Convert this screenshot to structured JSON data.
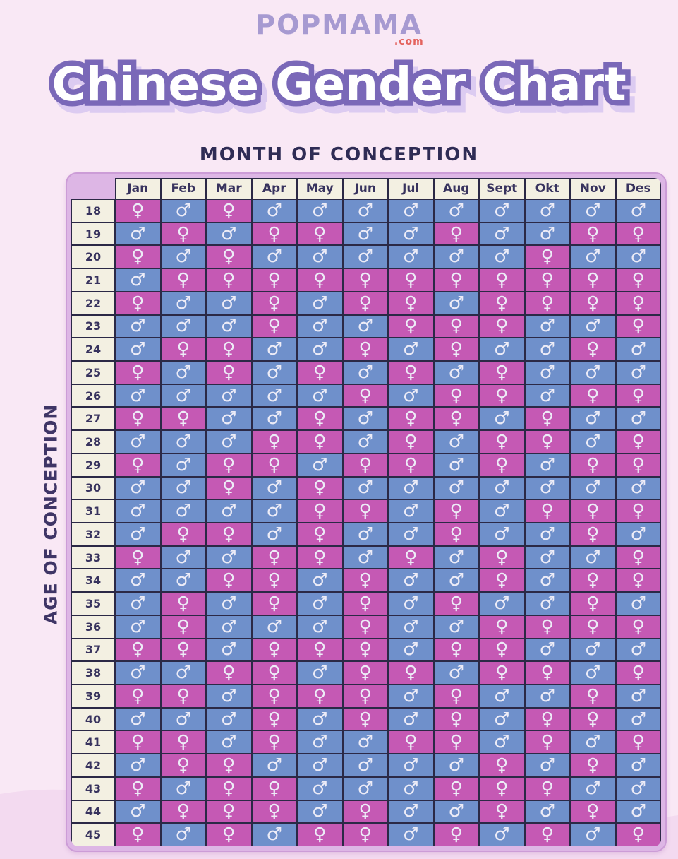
{
  "brand": {
    "name": "POPMAMA",
    "tld": ".com"
  },
  "title": "Chinese Gender Chart",
  "axis": {
    "top": "MONTH OF CONCEPTION",
    "left": "AGE OF CONCEPTION"
  },
  "symbols": {
    "F": "♀",
    "M": "♂"
  },
  "colors": {
    "page_bg": "#f9e8f5",
    "wave": "#f3daf0",
    "frame": "#ddb6e5",
    "frame_border": "#cc9cd7",
    "header_bg": "#f3f0e2",
    "cell_border": "#2b2946",
    "female_bg": "#c559b4",
    "male_bg": "#6f90cb",
    "symbol": "#edecf7",
    "text_dark": "#38335e",
    "title_fill": "#ffffff",
    "title_outline": "#7a68b8",
    "title_shadow": "#dccbf1",
    "brand_purple": "#a79ad1",
    "brand_red": "#e4635e"
  },
  "chart_data": {
    "type": "table",
    "title": "Chinese Gender Chart",
    "x_axis_label": "MONTH OF CONCEPTION",
    "y_axis_label": "AGE OF CONCEPTION",
    "value_legend": {
      "F": "girl (pink, ♀)",
      "M": "boy (blue, ♂)"
    },
    "columns": [
      "Jan",
      "Feb",
      "Mar",
      "Apr",
      "May",
      "Jun",
      "Jul",
      "Aug",
      "Sept",
      "Okt",
      "Nov",
      "Des"
    ],
    "rows": [
      {
        "age": 18,
        "genders": [
          "F",
          "M",
          "F",
          "M",
          "M",
          "M",
          "M",
          "M",
          "M",
          "M",
          "M",
          "M"
        ]
      },
      {
        "age": 19,
        "genders": [
          "M",
          "F",
          "M",
          "F",
          "F",
          "M",
          "M",
          "F",
          "M",
          "M",
          "F",
          "F"
        ]
      },
      {
        "age": 20,
        "genders": [
          "F",
          "M",
          "F",
          "M",
          "M",
          "M",
          "M",
          "M",
          "M",
          "F",
          "M",
          "M"
        ]
      },
      {
        "age": 21,
        "genders": [
          "M",
          "F",
          "F",
          "F",
          "F",
          "F",
          "F",
          "F",
          "F",
          "F",
          "F",
          "F"
        ]
      },
      {
        "age": 22,
        "genders": [
          "F",
          "M",
          "M",
          "F",
          "M",
          "F",
          "F",
          "M",
          "F",
          "F",
          "F",
          "F"
        ]
      },
      {
        "age": 23,
        "genders": [
          "M",
          "M",
          "M",
          "F",
          "M",
          "M",
          "F",
          "F",
          "F",
          "M",
          "M",
          "F"
        ]
      },
      {
        "age": 24,
        "genders": [
          "M",
          "F",
          "F",
          "M",
          "M",
          "F",
          "M",
          "F",
          "M",
          "M",
          "F",
          "M"
        ]
      },
      {
        "age": 25,
        "genders": [
          "F",
          "M",
          "F",
          "M",
          "F",
          "M",
          "F",
          "M",
          "F",
          "M",
          "M",
          "M"
        ]
      },
      {
        "age": 26,
        "genders": [
          "M",
          "M",
          "M",
          "M",
          "M",
          "F",
          "M",
          "F",
          "F",
          "M",
          "F",
          "F"
        ]
      },
      {
        "age": 27,
        "genders": [
          "F",
          "F",
          "M",
          "M",
          "F",
          "M",
          "F",
          "F",
          "M",
          "F",
          "M",
          "M"
        ]
      },
      {
        "age": 28,
        "genders": [
          "M",
          "M",
          "M",
          "F",
          "F",
          "M",
          "F",
          "M",
          "F",
          "F",
          "M",
          "F"
        ]
      },
      {
        "age": 29,
        "genders": [
          "F",
          "M",
          "F",
          "F",
          "M",
          "F",
          "F",
          "M",
          "F",
          "M",
          "F",
          "F"
        ]
      },
      {
        "age": 30,
        "genders": [
          "M",
          "M",
          "F",
          "M",
          "F",
          "M",
          "M",
          "M",
          "M",
          "M",
          "M",
          "M"
        ]
      },
      {
        "age": 31,
        "genders": [
          "M",
          "M",
          "M",
          "M",
          "F",
          "F",
          "M",
          "F",
          "M",
          "F",
          "F",
          "F"
        ]
      },
      {
        "age": 32,
        "genders": [
          "M",
          "F",
          "F",
          "M",
          "F",
          "M",
          "M",
          "F",
          "M",
          "M",
          "F",
          "M"
        ]
      },
      {
        "age": 33,
        "genders": [
          "F",
          "M",
          "M",
          "F",
          "F",
          "M",
          "F",
          "M",
          "F",
          "M",
          "M",
          "F"
        ]
      },
      {
        "age": 34,
        "genders": [
          "M",
          "M",
          "F",
          "F",
          "M",
          "F",
          "M",
          "M",
          "F",
          "M",
          "F",
          "F"
        ]
      },
      {
        "age": 35,
        "genders": [
          "M",
          "F",
          "M",
          "F",
          "M",
          "F",
          "M",
          "F",
          "M",
          "M",
          "F",
          "M"
        ]
      },
      {
        "age": 36,
        "genders": [
          "M",
          "F",
          "M",
          "M",
          "M",
          "F",
          "M",
          "M",
          "F",
          "F",
          "F",
          "F"
        ]
      },
      {
        "age": 37,
        "genders": [
          "F",
          "F",
          "M",
          "F",
          "F",
          "F",
          "M",
          "F",
          "F",
          "M",
          "M",
          "M"
        ]
      },
      {
        "age": 38,
        "genders": [
          "M",
          "M",
          "F",
          "F",
          "M",
          "F",
          "F",
          "M",
          "F",
          "F",
          "M",
          "F"
        ]
      },
      {
        "age": 39,
        "genders": [
          "F",
          "F",
          "M",
          "F",
          "F",
          "F",
          "M",
          "F",
          "M",
          "M",
          "F",
          "M"
        ]
      },
      {
        "age": 40,
        "genders": [
          "M",
          "M",
          "M",
          "F",
          "M",
          "F",
          "M",
          "F",
          "M",
          "F",
          "F",
          "M"
        ]
      },
      {
        "age": 41,
        "genders": [
          "F",
          "F",
          "M",
          "F",
          "M",
          "M",
          "F",
          "F",
          "M",
          "F",
          "M",
          "F"
        ]
      },
      {
        "age": 42,
        "genders": [
          "M",
          "F",
          "F",
          "M",
          "M",
          "M",
          "M",
          "M",
          "F",
          "M",
          "F",
          "M"
        ]
      },
      {
        "age": 43,
        "genders": [
          "F",
          "M",
          "F",
          "F",
          "M",
          "M",
          "M",
          "F",
          "F",
          "F",
          "M",
          "M"
        ]
      },
      {
        "age": 44,
        "genders": [
          "M",
          "F",
          "F",
          "F",
          "M",
          "F",
          "M",
          "M",
          "F",
          "M",
          "F",
          "M"
        ]
      },
      {
        "age": 45,
        "genders": [
          "F",
          "M",
          "F",
          "M",
          "F",
          "F",
          "M",
          "F",
          "M",
          "F",
          "M",
          "F"
        ]
      }
    ]
  }
}
